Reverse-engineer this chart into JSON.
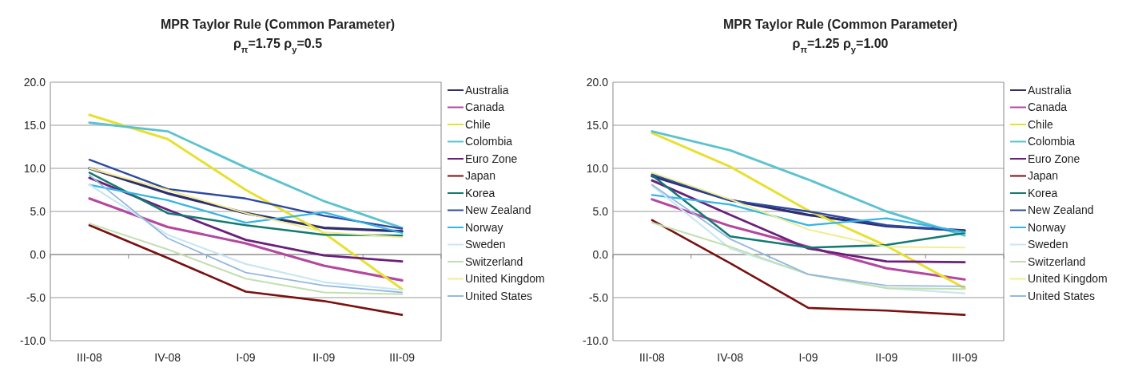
{
  "chart_data": [
    {
      "type": "line",
      "title": "MPR Taylor Rule (Common Parameter)",
      "subtitle": "ρ$_{π}$=1.75 ρ$_{y}$=0.5",
      "categories": [
        "III-08",
        "IV-08",
        "I-09",
        "II-09",
        "III-09"
      ],
      "ylim": [
        -10,
        20
      ],
      "yticks": [
        {
          "value": -10,
          "label": "-10.0"
        },
        {
          "value": -5,
          "label": "-5.0"
        },
        {
          "value": 0,
          "label": "0.0"
        },
        {
          "value": 5,
          "label": "5.0"
        },
        {
          "value": 10,
          "label": "10.0"
        },
        {
          "value": 15,
          "label": "15.0"
        },
        {
          "value": 20,
          "label": "20.0"
        }
      ],
      "grid": "y",
      "legend": "right",
      "series": [
        {
          "name": "Australia",
          "color": "#2e2e6e",
          "values": [
            10.0,
            7.1,
            4.8,
            3.1,
            2.7
          ]
        },
        {
          "name": "Canada",
          "color": "#b5489e",
          "values": [
            6.5,
            3.2,
            1.3,
            -1.3,
            -3.0
          ]
        },
        {
          "name": "Chile",
          "color": "#e8e030",
          "values": [
            16.2,
            13.4,
            7.5,
            2.5,
            -4.0
          ]
        },
        {
          "name": "Colombia",
          "color": "#5bc2d0",
          "values": [
            15.3,
            14.3,
            10.1,
            6.2,
            3.1
          ]
        },
        {
          "name": "Euro Zone",
          "color": "#6b1f7a",
          "values": [
            8.9,
            5.2,
            1.7,
            -0.1,
            -0.8
          ]
        },
        {
          "name": "Japan",
          "color": "#7a1010",
          "values": [
            3.4,
            -0.4,
            -4.3,
            -5.4,
            -7.0
          ]
        },
        {
          "name": "Korea",
          "color": "#127a72",
          "values": [
            9.5,
            4.8,
            3.4,
            2.3,
            2.2
          ]
        },
        {
          "name": "New Zealand",
          "color": "#2e4aa0",
          "values": [
            11.0,
            7.6,
            6.5,
            4.5,
            3.0
          ]
        },
        {
          "name": "Norway",
          "color": "#33b5e5",
          "values": [
            8.1,
            6.3,
            3.7,
            4.9,
            2.5
          ]
        },
        {
          "name": "Sweden",
          "color": "#c9e6f2",
          "values": [
            8.1,
            2.3,
            -1.1,
            -3.2,
            -4.1
          ]
        },
        {
          "name": "Switzerland",
          "color": "#c3dfb0",
          "values": [
            3.6,
            0.6,
            -2.8,
            -4.4,
            -4.6
          ]
        },
        {
          "name": "United Kingdom",
          "color": "#f2ec8c",
          "values": [
            10.0,
            7.5,
            4.8,
            2.6,
            2.0
          ]
        },
        {
          "name": "United States",
          "color": "#94b8e0",
          "values": [
            9.2,
            1.9,
            -2.1,
            -3.6,
            -4.4
          ]
        }
      ]
    },
    {
      "type": "line",
      "title": "MPR Taylor Rule (Common Parameter)",
      "subtitle": "ρ$_{π}$=1.25 ρ$_{y}$=1.00",
      "categories": [
        "III-08",
        "IV-08",
        "I-09",
        "II-09",
        "III-09"
      ],
      "ylim": [
        -10,
        20
      ],
      "yticks": [
        {
          "value": -10,
          "label": "-10.0"
        },
        {
          "value": -5,
          "label": "-5.0"
        },
        {
          "value": 0,
          "label": "0.0"
        },
        {
          "value": 5,
          "label": "5.0"
        },
        {
          "value": 10,
          "label": "10.0"
        },
        {
          "value": 15,
          "label": "15.0"
        },
        {
          "value": 20,
          "label": "20.0"
        }
      ],
      "grid": "y",
      "legend": "right",
      "series": [
        {
          "name": "Australia",
          "color": "#2e2e6e",
          "values": [
            9.1,
            6.3,
            4.6,
            3.3,
            2.8
          ]
        },
        {
          "name": "Canada",
          "color": "#b5489e",
          "values": [
            6.4,
            3.3,
            0.9,
            -1.6,
            -2.9
          ]
        },
        {
          "name": "Chile",
          "color": "#e8e030",
          "values": [
            14.1,
            10.2,
            5.1,
            1.0,
            -3.9
          ]
        },
        {
          "name": "Colombia",
          "color": "#5bc2d0",
          "values": [
            14.3,
            12.1,
            8.7,
            5.0,
            2.2
          ]
        },
        {
          "name": "Euro Zone",
          "color": "#6b1f7a",
          "values": [
            8.6,
            4.6,
            0.7,
            -0.8,
            -0.9
          ]
        },
        {
          "name": "Japan",
          "color": "#7a1010",
          "values": [
            4.0,
            -1.0,
            -6.2,
            -6.5,
            -7.0
          ]
        },
        {
          "name": "Korea",
          "color": "#127a72",
          "values": [
            9.2,
            2.1,
            0.8,
            1.1,
            2.5
          ]
        },
        {
          "name": "New Zealand",
          "color": "#2e4aa0",
          "values": [
            9.3,
            6.3,
            5.0,
            3.4,
            2.7
          ]
        },
        {
          "name": "Norway",
          "color": "#33b5e5",
          "values": [
            6.9,
            5.8,
            3.4,
            4.2,
            2.6
          ]
        },
        {
          "name": "Sweden",
          "color": "#c9e6f2",
          "values": [
            8.0,
            0.7,
            -2.3,
            -3.9,
            -4.5
          ]
        },
        {
          "name": "Switzerland",
          "color": "#c3dfb0",
          "values": [
            3.7,
            0.9,
            -2.3,
            -3.9,
            -4.0
          ]
        },
        {
          "name": "United Kingdom",
          "color": "#f2ec8c",
          "values": [
            9.5,
            6.4,
            2.9,
            0.9,
            0.8
          ]
        },
        {
          "name": "United States",
          "color": "#94b8e0",
          "values": [
            8.1,
            1.8,
            -2.3,
            -3.6,
            -3.7
          ]
        }
      ]
    }
  ]
}
